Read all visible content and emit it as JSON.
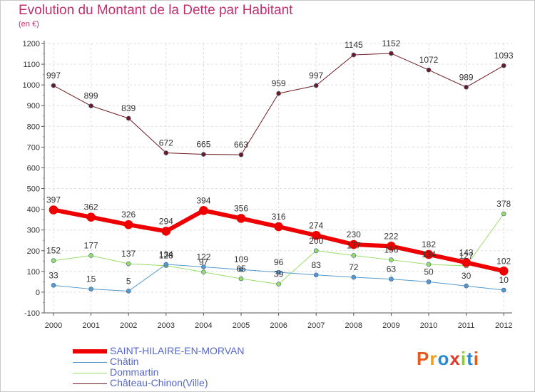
{
  "header": {
    "title": "Evolution du Montant de la Dette par Habitant",
    "subtitle": "(en €)"
  },
  "logo": {
    "text": "Proxiti",
    "colors": [
      "#e85a1a",
      "#f0a020",
      "#2a8ad0",
      "#e23a2a",
      "#8cc83a",
      "#2a8ad0",
      "#e85a1a"
    ]
  },
  "chart_data": {
    "type": "line",
    "title": "Evolution du Montant de la Dette par Habitant",
    "subtitle": "(en €)",
    "xlabel": "",
    "ylabel": "",
    "x": [
      "2000",
      "2001",
      "2002",
      "2003",
      "2004",
      "2005",
      "2006",
      "2007",
      "2008",
      "2009",
      "2010",
      "2011",
      "2012"
    ],
    "ylim": [
      -100,
      1200
    ],
    "yticks": [
      -100,
      0,
      100,
      200,
      300,
      400,
      500,
      600,
      700,
      800,
      900,
      1000,
      1100,
      1200
    ],
    "grid": true,
    "legend": "bottom-left",
    "series": [
      {
        "name": "Château-Chinon(Ville)",
        "color": "#6e1a22",
        "values": [
          997,
          899,
          839,
          672,
          665,
          663,
          959,
          997,
          1145,
          1152,
          1072,
          989,
          1093
        ]
      },
      {
        "name": "Dommartin",
        "color": "#99dd66",
        "values": [
          152,
          177,
          137,
          128,
          97,
          65,
          39,
          200,
          177,
          156,
          134,
          127,
          378
        ]
      },
      {
        "name": "Châtin",
        "color": "#5599cc",
        "values": [
          33,
          15,
          5,
          134,
          122,
          109,
          96,
          83,
          72,
          63,
          50,
          30,
          10
        ]
      },
      {
        "name": "SAINT-HILAIRE-EN-MORVAN",
        "color": "#ee0000",
        "values": [
          397,
          362,
          326,
          294,
          394,
          356,
          316,
          274,
          230,
          222,
          182,
          143,
          102
        ]
      }
    ],
    "legend_order": [
      "SAINT-HILAIRE-EN-MORVAN",
      "Châtin",
      "Dommartin",
      "Château-Chinon(Ville)"
    ]
  }
}
